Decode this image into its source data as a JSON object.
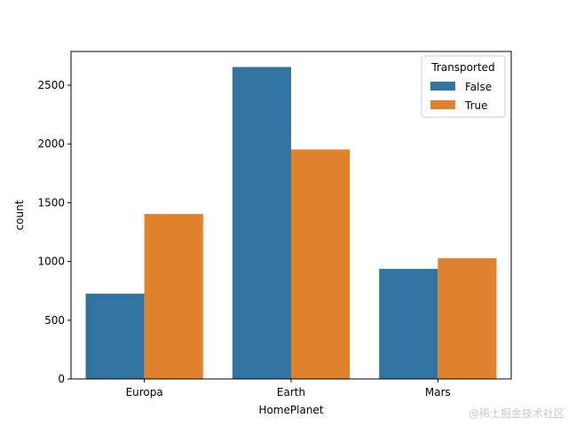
{
  "chart_data": {
    "type": "bar",
    "title": "",
    "xlabel": "HomePlanet",
    "ylabel": "count",
    "categories": [
      "Europa",
      "Earth",
      "Mars"
    ],
    "series": [
      {
        "name": "False",
        "color": "#3274a1",
        "values": [
          726,
          2655,
          937
        ]
      },
      {
        "name": "True",
        "color": "#e1812c",
        "values": [
          1404,
          1953,
          1028
        ]
      }
    ],
    "ylim": [
      0,
      2787
    ],
    "yticks": [
      0,
      500,
      1000,
      1500,
      2000,
      2500
    ],
    "grid": false,
    "legend": {
      "title": "Transported",
      "placement": "top-right"
    }
  },
  "watermark": "@稀土掘金技术社区"
}
